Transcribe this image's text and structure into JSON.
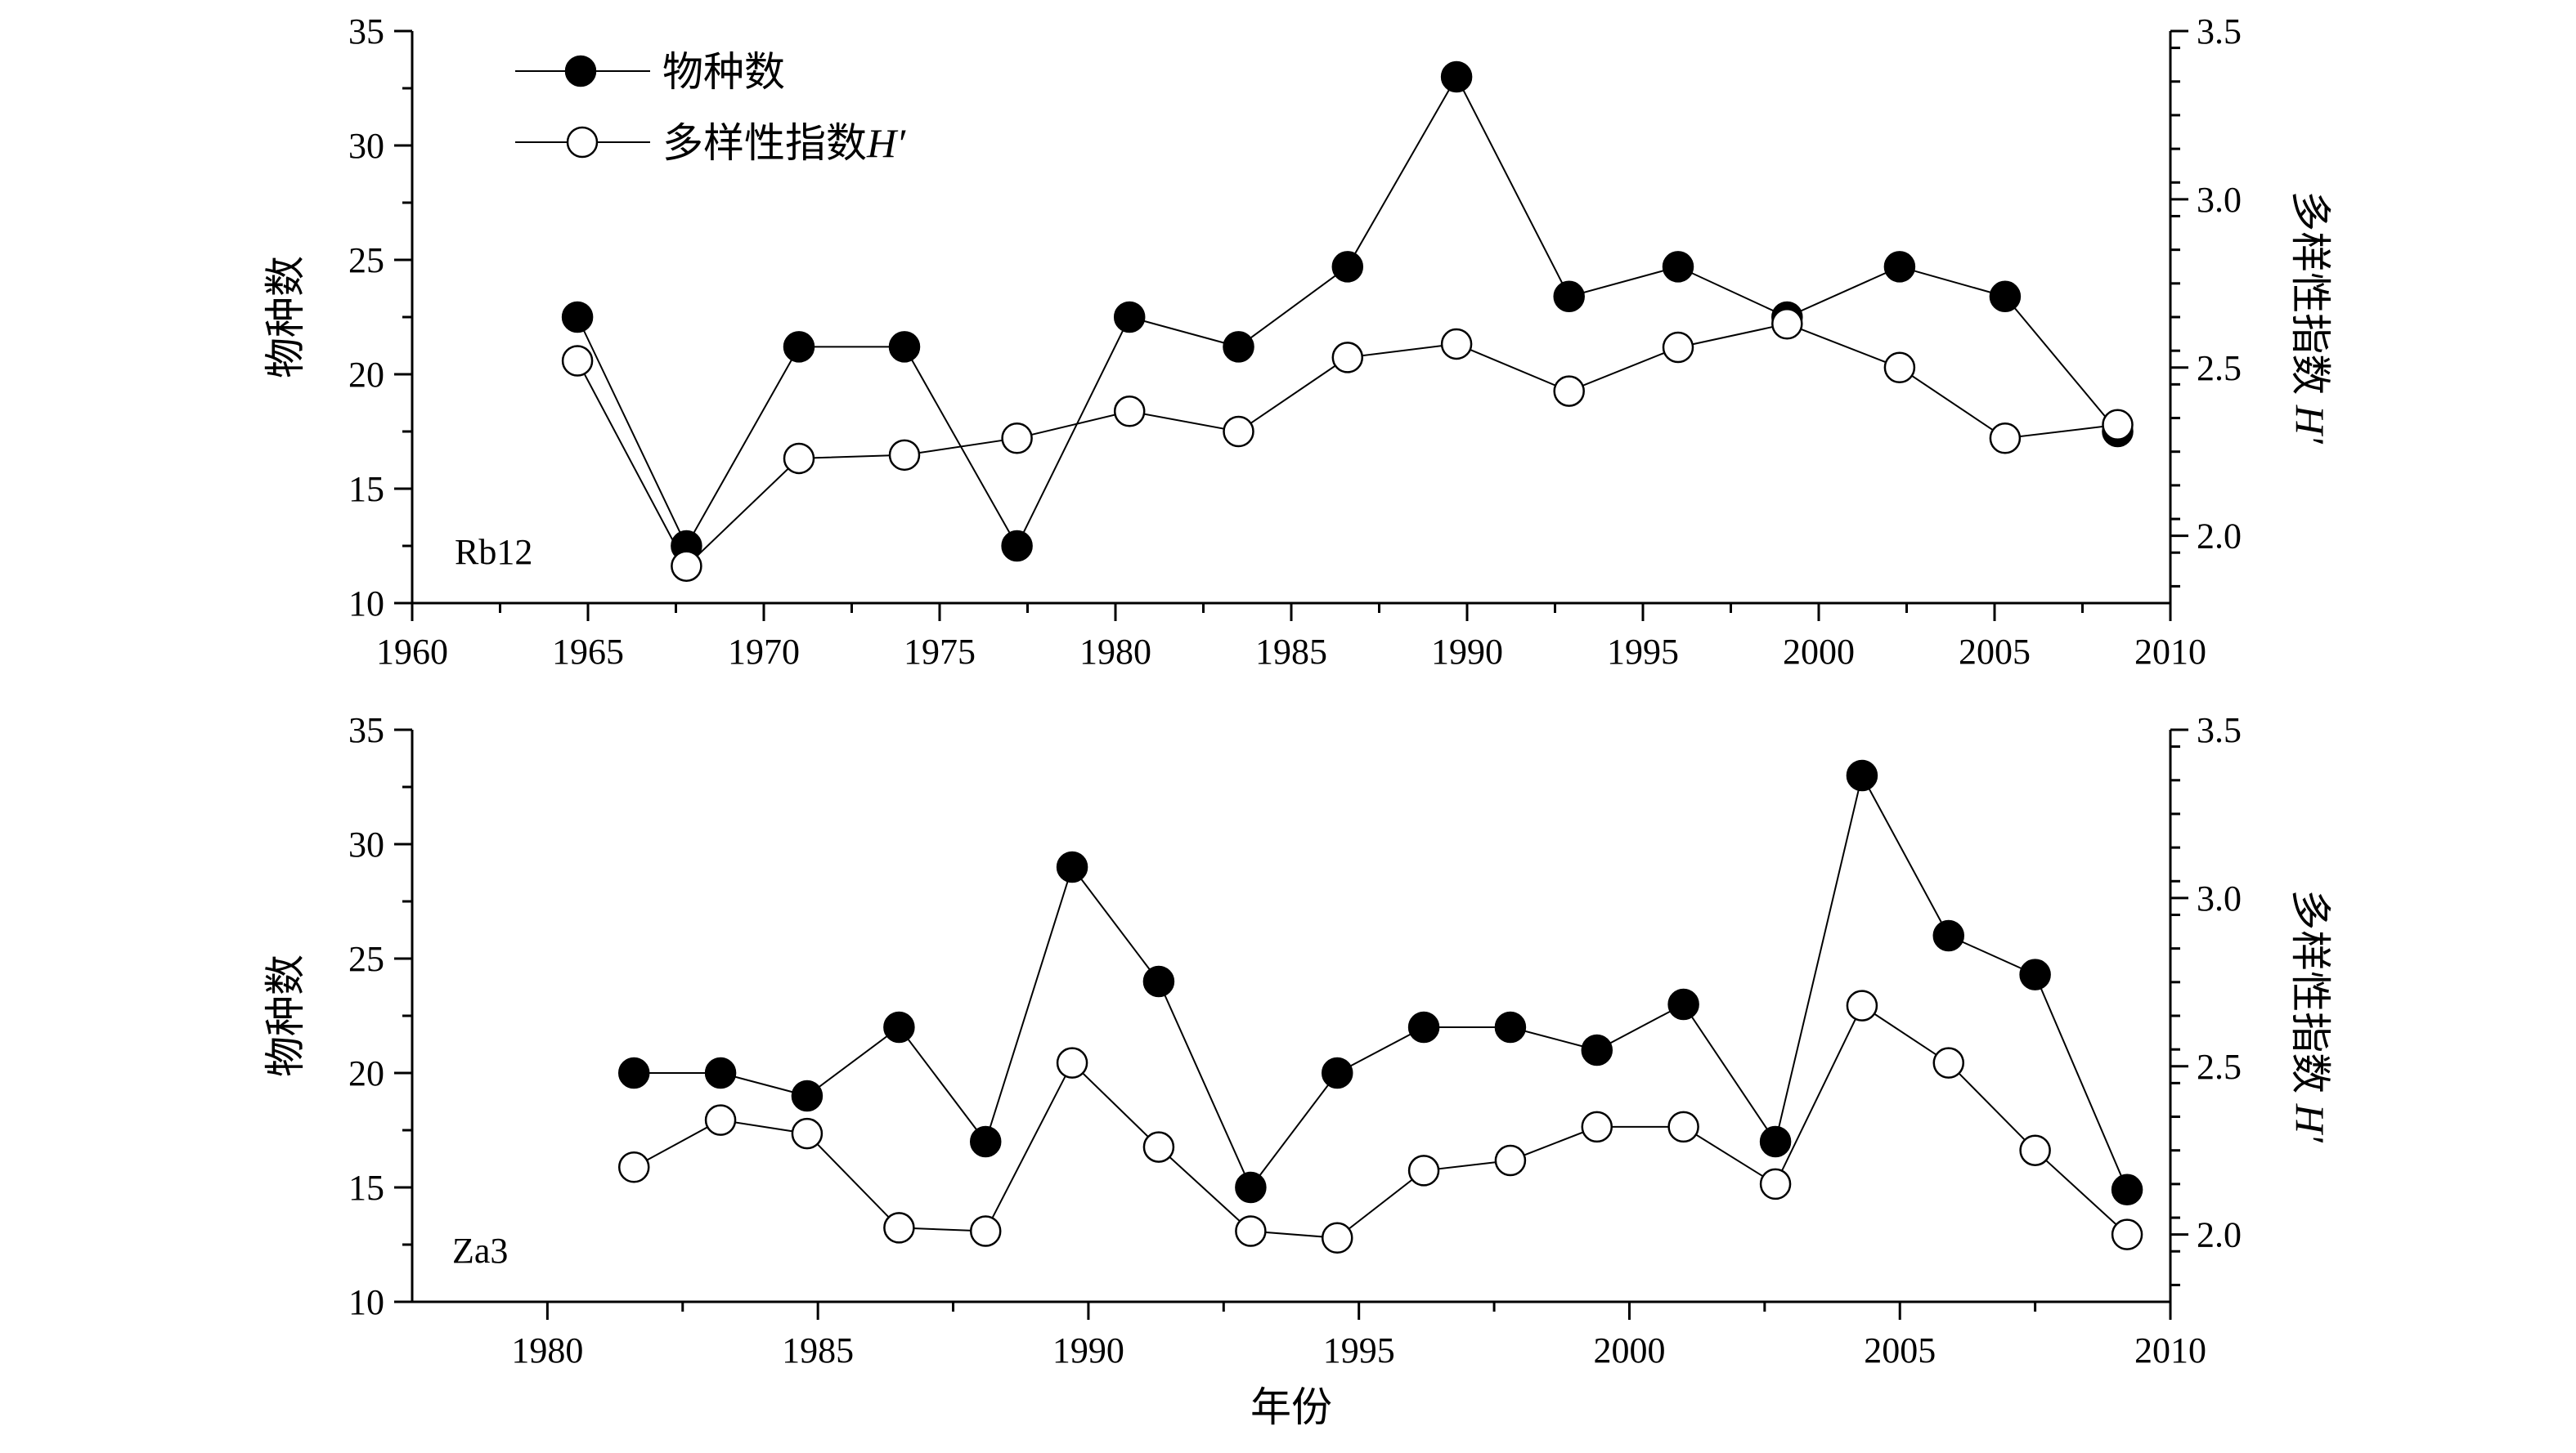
{
  "chart_data": [
    {
      "type": "line",
      "panel_label": "Rb12",
      "x_ticks": [
        "1960",
        "1965",
        "1970",
        "1975",
        "1980",
        "1985",
        "1990",
        "1995",
        "2000",
        "2005",
        "2010"
      ],
      "xlim": [
        1960,
        2010
      ],
      "ylabel_left": "物种数",
      "ylabel_right": "多样性指数",
      "ylabel_right_italic": "H′",
      "ylim_left": [
        10,
        35
      ],
      "yticks_left": [
        "10",
        "15",
        "20",
        "25",
        "30",
        "35"
      ],
      "ylim_right": [
        1.8,
        3.5
      ],
      "yticks_right": [
        "2.0",
        "2.5",
        "3.0",
        "3.5"
      ],
      "legend": {
        "position": "top-left",
        "entries": [
          {
            "label": "物种数",
            "italic": "",
            "marker": "filled"
          },
          {
            "label": "多样性指数",
            "italic": "H′",
            "marker": "open"
          }
        ]
      },
      "series": [
        {
          "name": "物种数",
          "axis": "left",
          "marker": "filled",
          "x": [
            1964.7,
            1967.8,
            1971.0,
            1974.0,
            1977.2,
            1980.4,
            1983.5,
            1986.6,
            1989.7,
            1992.9,
            1996.0,
            1999.1,
            2002.3,
            2005.3,
            2008.5
          ],
          "y": [
            22.5,
            12.5,
            21.2,
            21.2,
            12.5,
            22.5,
            21.2,
            24.7,
            33.0,
            23.4,
            24.7,
            22.5,
            24.7,
            23.4,
            17.5
          ]
        },
        {
          "name": "多样性指数H′",
          "axis": "right",
          "marker": "open",
          "x": [
            1964.7,
            1967.8,
            1971.0,
            1974.0,
            1977.2,
            1980.4,
            1983.5,
            1986.6,
            1989.7,
            1992.9,
            1996.0,
            1999.1,
            2002.3,
            2005.3,
            2008.5
          ],
          "y": [
            2.52,
            1.91,
            2.23,
            2.24,
            2.29,
            2.37,
            2.31,
            2.53,
            2.57,
            2.43,
            2.56,
            2.63,
            2.5,
            2.29,
            2.33
          ]
        }
      ]
    },
    {
      "type": "line",
      "panel_label": "Za3",
      "x_ticks": [
        "1980",
        "1985",
        "1990",
        "1995",
        "2000",
        "2005",
        "2010"
      ],
      "xlim": [
        1977.5,
        2010
      ],
      "xlabel": "年份",
      "ylabel_left": "物种数",
      "ylabel_right": "多样性指数",
      "ylabel_right_italic": "H′",
      "ylim_left": [
        10,
        35
      ],
      "yticks_left": [
        "10",
        "15",
        "20",
        "25",
        "30",
        "35"
      ],
      "ylim_right": [
        1.8,
        3.5
      ],
      "yticks_right": [
        "2.0",
        "2.5",
        "3.0",
        "3.5"
      ],
      "series": [
        {
          "name": "物种数",
          "axis": "left",
          "marker": "filled",
          "x": [
            1981.6,
            1983.2,
            1984.8,
            1986.5,
            1988.1,
            1989.7,
            1991.3,
            1993.0,
            1994.6,
            1996.2,
            1997.8,
            1999.4,
            2001.0,
            2002.7,
            2004.3,
            2005.9,
            2007.5,
            2009.2
          ],
          "y": [
            20,
            20,
            19,
            22,
            17,
            29,
            24,
            15,
            20,
            22,
            22,
            21,
            23,
            17,
            33,
            26,
            24.3,
            14.9
          ]
        },
        {
          "name": "多样性指数H′",
          "axis": "right",
          "marker": "open",
          "x": [
            1981.6,
            1983.2,
            1984.8,
            1986.5,
            1988.1,
            1989.7,
            1991.3,
            1993.0,
            1994.6,
            1996.2,
            1997.8,
            1999.4,
            2001.0,
            2002.7,
            2004.3,
            2005.9,
            2007.5,
            2009.2
          ],
          "y": [
            2.2,
            2.34,
            2.3,
            2.02,
            2.01,
            2.51,
            2.26,
            2.01,
            1.99,
            2.19,
            2.22,
            2.32,
            2.32,
            2.15,
            2.68,
            2.51,
            2.25,
            2.0
          ]
        }
      ]
    }
  ]
}
